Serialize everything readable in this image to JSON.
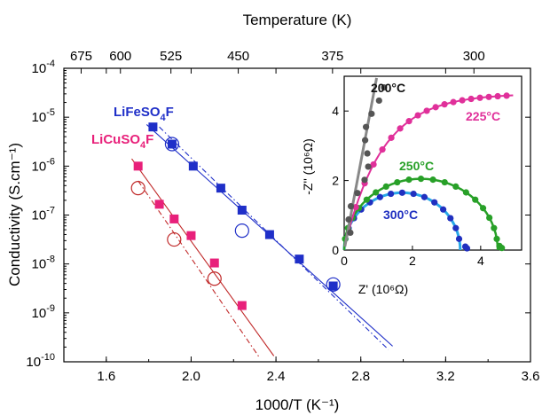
{
  "chart_data": [
    {
      "type": "scatter",
      "title": "",
      "xlabel": "1000/T (K⁻¹)",
      "ylabel": "Conductivity (S.cm⁻¹)",
      "top_xlabel": "Temperature (K)",
      "xlim": [
        1.4,
        3.6
      ],
      "ylim_log10": [
        -10,
        -4
      ],
      "yscale": "log",
      "x_ticks": [
        "1.6",
        "2.0",
        "2.4",
        "2.8",
        "3.2",
        "3.6"
      ],
      "x_tick_values": [
        1.6,
        2.0,
        2.4,
        2.8,
        3.2,
        3.6
      ],
      "y_ticks": [
        "10",
        "10",
        "10",
        "10",
        "10",
        "10",
        "10"
      ],
      "y_tick_exponents": [
        "-10",
        "-9",
        "-8",
        "-7",
        "-6",
        "-5",
        "-4"
      ],
      "y_tick_values_log10": [
        -10,
        -9,
        -8,
        -7,
        -6,
        -5,
        -4
      ],
      "top_ticks": [
        "675",
        "600",
        "525",
        "450",
        "375",
        "300"
      ],
      "top_tick_values_K": [
        675,
        600,
        525,
        450,
        375,
        300
      ],
      "grid": false,
      "series": [
        {
          "name": "LiFeSO4F",
          "label_parts": [
            "LiFeSO",
            "4",
            "F"
          ],
          "color": "#1f2fc8",
          "marker": "square",
          "x": [
            1.82,
            1.91,
            2.01,
            2.14,
            2.24,
            2.37,
            2.51,
            2.67
          ],
          "y_log10": [
            -5.2,
            -5.55,
            -6.0,
            -6.45,
            -6.9,
            -7.4,
            -7.9,
            -8.45
          ]
        },
        {
          "name": "LiCuSO4F",
          "label_parts": [
            "LiCuSO",
            "4",
            "F"
          ],
          "color": "#e8207a",
          "marker": "square",
          "x": [
            1.75,
            1.85,
            1.92,
            2.0,
            2.11,
            2.24
          ],
          "y_log10": [
            -6.0,
            -6.78,
            -7.08,
            -7.42,
            -7.98,
            -8.85
          ]
        }
      ],
      "open_circles": [
        {
          "series": "LiFeSO4F",
          "x": [
            1.91,
            2.24,
            2.67
          ],
          "y_log10": [
            -5.55,
            -7.32,
            -8.42
          ],
          "color": "#1f2fc8"
        },
        {
          "series": "LiCuSO4F",
          "x": [
            1.75,
            1.92,
            2.11
          ],
          "y_log10": [
            -6.45,
            -7.5,
            -8.3
          ],
          "color": "#c02828"
        }
      ],
      "fit_lines": [
        {
          "series": "LiFeSO4F",
          "color": "#1f2fc8",
          "x": [
            1.79,
            2.95
          ],
          "y_log10": [
            -5.15,
            -9.68
          ]
        },
        {
          "series": "LiFeSO4F",
          "color": "#1f2fc8",
          "x": [
            1.85,
            2.93
          ],
          "y_log10": [
            -5.2,
            -9.75
          ]
        },
        {
          "series": "LiCuSO4F",
          "color": "#c02828",
          "x": [
            1.72,
            2.39
          ],
          "y_log10": [
            -5.85,
            -9.88
          ]
        },
        {
          "series": "LiCuSO4F",
          "color": "#c02828",
          "x": [
            1.75,
            2.32
          ],
          "y_log10": [
            -6.3,
            -9.9
          ]
        }
      ]
    },
    {
      "type": "scatter",
      "title": "",
      "xlabel": "Z' (10⁶Ω)",
      "ylabel": "-Z'' (10⁶Ω)",
      "xlim": [
        0,
        5.2
      ],
      "ylim": [
        0,
        5.0
      ],
      "x_ticks": [
        "0",
        "2",
        "4"
      ],
      "x_tick_values": [
        0,
        2,
        4
      ],
      "y_ticks": [
        "0",
        "2",
        "4"
      ],
      "y_tick_values": [
        0,
        2,
        4
      ],
      "grid": false,
      "series": [
        {
          "name": "200°C",
          "color": "#555555",
          "fit_color": "#888888",
          "semicircle": null
        },
        {
          "name": "225°C",
          "color": "#e0309a",
          "fit_color": "#e0309a",
          "semicircle": null
        },
        {
          "name": "250°C",
          "color": "#28a028",
          "fit_color": "#28a028",
          "semicircle": {
            "r0": 0.0,
            "r1": 4.5,
            "height": 2.05
          }
        },
        {
          "name": "300°C",
          "color": "#2030c0",
          "fit_color": "#28a8e8",
          "semicircle": {
            "r0": 0.0,
            "r1": 3.4,
            "height": 1.65
          }
        }
      ]
    }
  ]
}
